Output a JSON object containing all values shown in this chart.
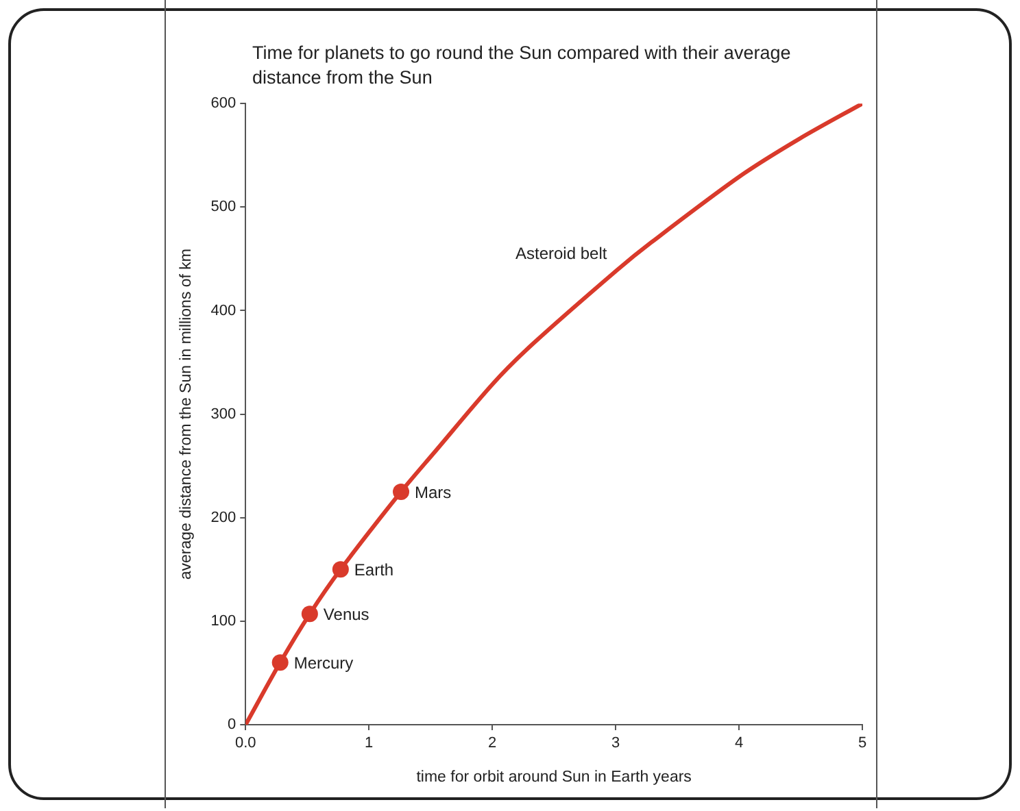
{
  "chart_data": {
    "type": "line",
    "title": "Time for planets to go round the Sun compared with their average distance from the Sun",
    "xlabel": "time for orbit around Sun in Earth years",
    "ylabel": "average distance from the Sun in millions of km",
    "series": [
      {
        "color": "#d93a2b",
        "marker": "none",
        "x": [
          0,
          0.28,
          0.52,
          0.77,
          1.26,
          1.53,
          2.01,
          2.33,
          3.01,
          3.29,
          4.01,
          4.49,
          5
        ],
        "values": [
          0,
          60,
          107,
          150,
          225,
          263,
          330,
          368,
          439,
          466,
          530,
          566,
          600
        ]
      },
      {
        "type": "scatter",
        "color": "#d93a2b",
        "marker": "circle",
        "x": [
          0.28,
          0.52,
          0.77,
          1.26
        ],
        "values": [
          60,
          107,
          150,
          225
        ]
      }
    ],
    "annotations": [
      {
        "text": "Mercury",
        "x": 0.28,
        "y": 60
      },
      {
        "text": "Venus",
        "x": 0.52,
        "y": 107
      },
      {
        "text": "Earth",
        "x": 0.77,
        "y": 150
      },
      {
        "text": "Mars",
        "x": 1.26,
        "y": 225
      },
      "Asteroid belt"
    ],
    "xlim": [
      0,
      5
    ],
    "xticks": [
      {
        "value": 0,
        "label": "0.0"
      },
      1,
      2,
      3,
      4,
      5
    ],
    "ylim": [
      0,
      600
    ],
    "yticks": [
      0,
      100,
      200,
      300,
      400,
      500,
      600
    ],
    "grid": false,
    "legend": false
  }
}
